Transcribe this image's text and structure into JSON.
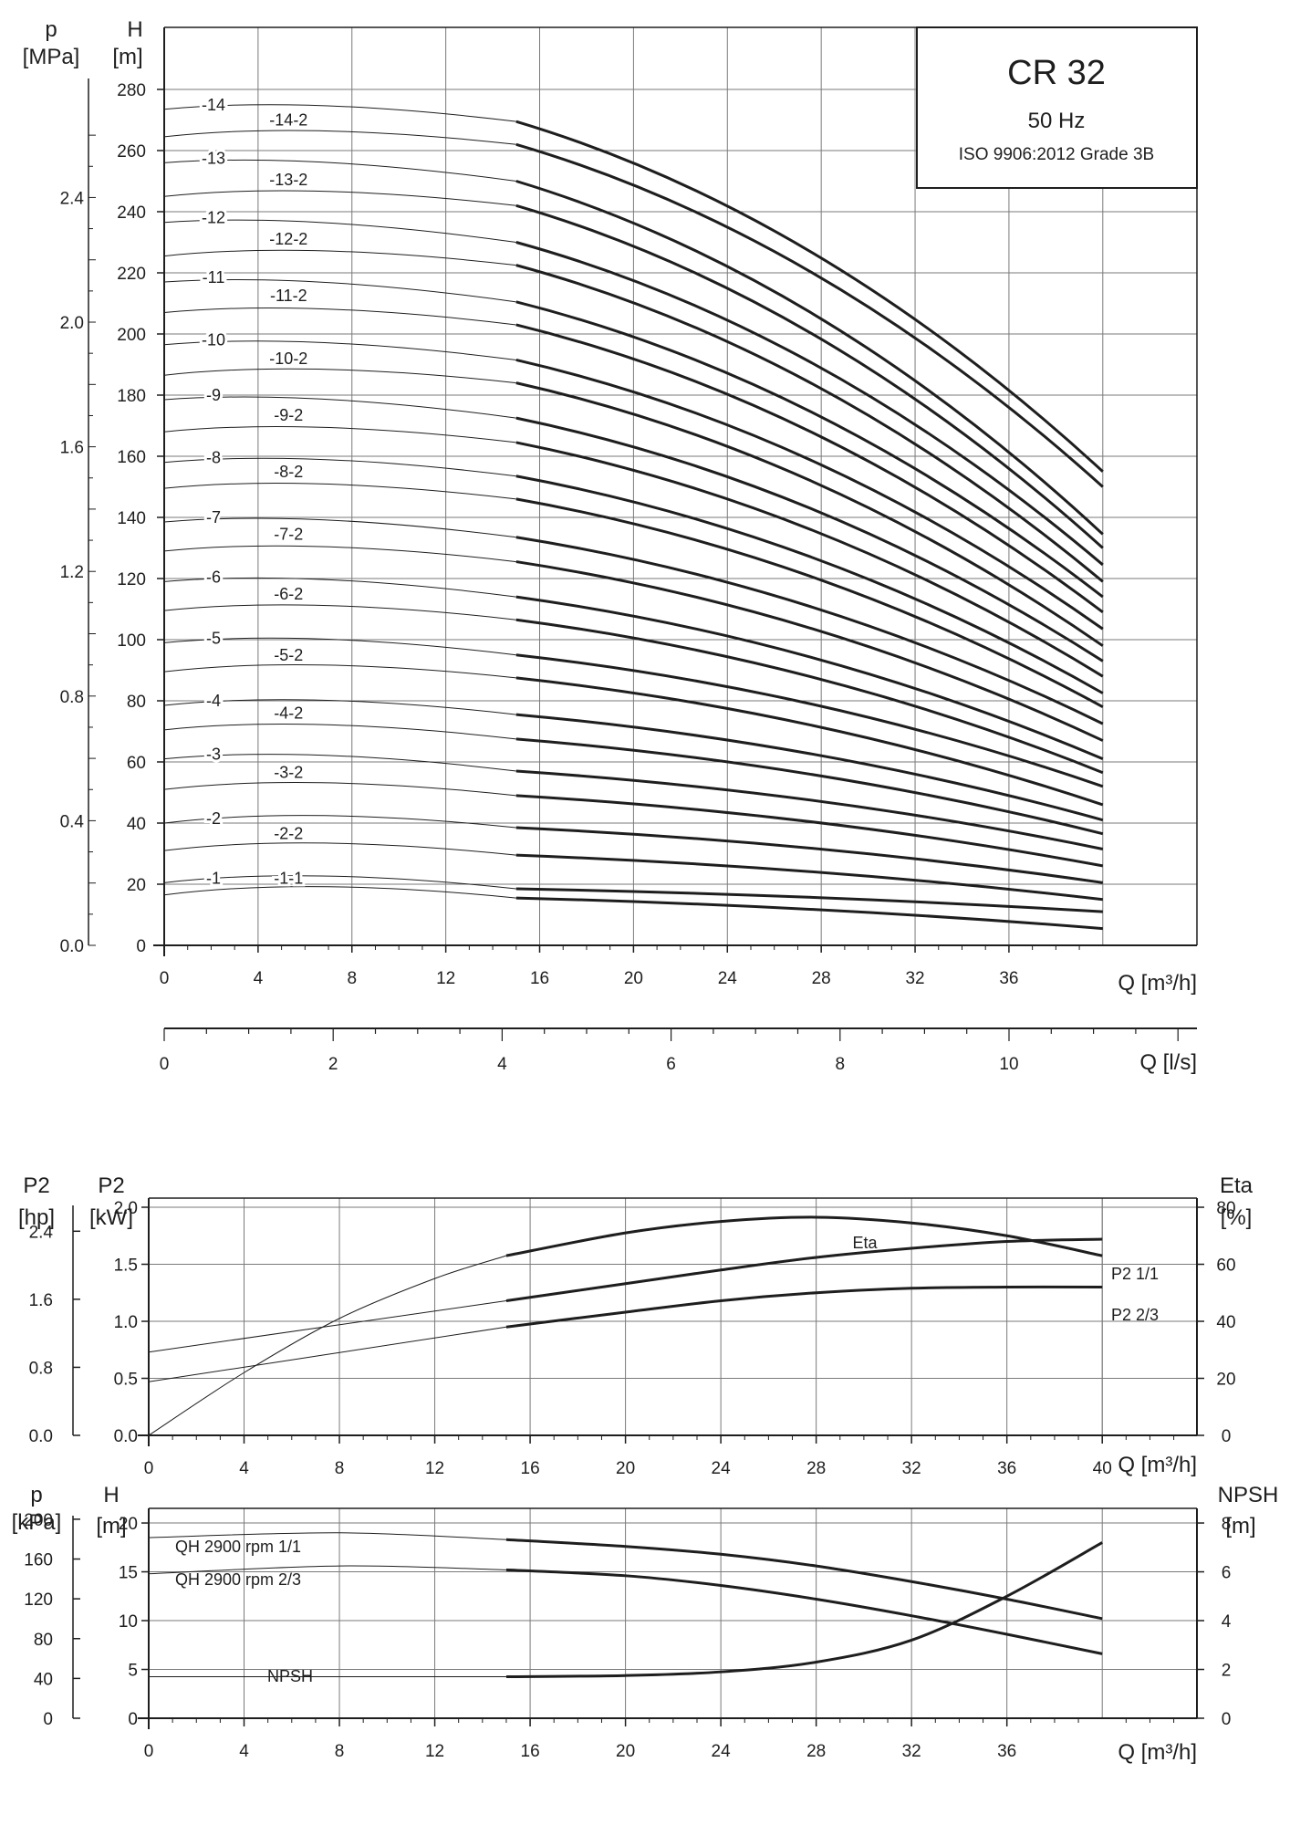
{
  "info_box": {
    "title": "CR 32",
    "frequency": "50 Hz",
    "standard": "ISO 9906:2012 Grade 3B"
  },
  "colors": {
    "ink": "#1e1e1e",
    "grid": "#7a7a7a",
    "background": "#ffffff"
  },
  "chart_data": [
    {
      "type": "line",
      "id": "qh_curves",
      "xlabel": "Q [m³/h]",
      "ylabel_left": "H",
      "ylabel_left_unit": "[m]",
      "ylabel_outer": "p",
      "ylabel_outer_unit": "[MPa]",
      "xlim": [
        0,
        44
      ],
      "ylim": [
        0,
        290
      ],
      "xticks": [
        0,
        4,
        8,
        12,
        16,
        20,
        24,
        28,
        32,
        36
      ],
      "yticks": [
        0,
        20,
        40,
        60,
        80,
        100,
        120,
        140,
        160,
        180,
        200,
        220,
        240,
        260,
        280
      ],
      "outer_ticks": [
        {
          "label": "0.0",
          "value": 0.0
        },
        {
          "label": "0.4",
          "value": 0.4
        },
        {
          "label": "0.8",
          "value": 0.8
        },
        {
          "label": "1.2",
          "value": 1.2
        },
        {
          "label": "1.6",
          "value": 1.6
        },
        {
          "label": "2.0",
          "value": 2.0
        },
        {
          "label": "2.4",
          "value": 2.4
        }
      ],
      "operating_range": [
        15,
        40
      ],
      "grid": true,
      "series": [
        {
          "name": "-1",
          "y0": 20.5,
          "y15": 18.5,
          "y40": 11.0
        },
        {
          "name": "-1-1",
          "y0": 16.5,
          "y15": 15.5,
          "y40": 5.5
        },
        {
          "name": "-2",
          "y0": 40.0,
          "y15": 38.5,
          "y40": 20.5
        },
        {
          "name": "-2-2",
          "y0": 31.0,
          "y15": 29.5,
          "y40": 15.0
        },
        {
          "name": "-3",
          "y0": 61.0,
          "y15": 57.0,
          "y40": 31.5
        },
        {
          "name": "-3-2",
          "y0": 51.0,
          "y15": 49.0,
          "y40": 26.0
        },
        {
          "name": "-4",
          "y0": 78.5,
          "y15": 75.5,
          "y40": 41.0
        },
        {
          "name": "-4-2",
          "y0": 70.5,
          "y15": 67.5,
          "y40": 36.5
        },
        {
          "name": "-5",
          "y0": 99.0,
          "y15": 95.0,
          "y40": 52.0
        },
        {
          "name": "-5-2",
          "y0": 89.5,
          "y15": 87.5,
          "y40": 46.0
        },
        {
          "name": "-6",
          "y0": 119.0,
          "y15": 114.0,
          "y40": 61.0
        },
        {
          "name": "-6-2",
          "y0": 109.5,
          "y15": 106.5,
          "y40": 56.5
        },
        {
          "name": "-7",
          "y0": 138.5,
          "y15": 133.5,
          "y40": 72.5
        },
        {
          "name": "-7-2",
          "y0": 129.0,
          "y15": 125.5,
          "y40": 67.0
        },
        {
          "name": "-8",
          "y0": 158.0,
          "y15": 153.5,
          "y40": 82.5
        },
        {
          "name": "-8-2",
          "y0": 149.5,
          "y15": 146.0,
          "y40": 78.0
        },
        {
          "name": "-9",
          "y0": 178.5,
          "y15": 172.5,
          "y40": 93.0
        },
        {
          "name": "-9-2",
          "y0": 168.0,
          "y15": 164.5,
          "y40": 88.0
        },
        {
          "name": "-10",
          "y0": 196.5,
          "y15": 191.5,
          "y40": 103.5
        },
        {
          "name": "-10-2",
          "y0": 186.5,
          "y15": 184.0,
          "y40": 98.0
        },
        {
          "name": "-11",
          "y0": 217.0,
          "y15": 210.5,
          "y40": 114.0
        },
        {
          "name": "-11-2",
          "y0": 207.0,
          "y15": 203.0,
          "y40": 109.0
        },
        {
          "name": "-12",
          "y0": 236.5,
          "y15": 230.0,
          "y40": 124.5
        },
        {
          "name": "-12-2",
          "y0": 225.5,
          "y15": 222.5,
          "y40": 119.0
        },
        {
          "name": "-13",
          "y0": 256.0,
          "y15": 250.0,
          "y40": 134.5
        },
        {
          "name": "-13-2",
          "y0": 245.0,
          "y15": 242.0,
          "y40": 130.0
        },
        {
          "name": "-14",
          "y0": 273.5,
          "y15": 269.5,
          "y40": 155.0
        },
        {
          "name": "-14-2",
          "y0": 264.5,
          "y15": 262.0,
          "y40": 150.0
        }
      ]
    },
    {
      "type": "axis",
      "id": "flow_ls_axis",
      "xlabel": "Q [l/s]",
      "xlim": [
        0,
        12.2
      ],
      "xticks": [
        0,
        2,
        4,
        6,
        8,
        10
      ]
    },
    {
      "type": "line",
      "id": "power_efficiency",
      "xlabel": "Q [m³/h]",
      "ylabel_left": "P2",
      "ylabel_left_unit": "[kW]",
      "ylabel_outer": "P2",
      "ylabel_outer_unit": "[hp]",
      "ylabel_right": "Eta",
      "ylabel_right_unit": "[%]",
      "xlim": [
        0,
        44
      ],
      "ylim": [
        0,
        2.0
      ],
      "xticks": [
        0,
        4,
        8,
        12,
        16,
        20,
        24,
        28,
        32,
        36,
        40
      ],
      "xtick_labels": [
        "0",
        "4",
        "8",
        "12",
        "16",
        "20",
        "24",
        "28",
        "32",
        "36",
        "40"
      ],
      "yticks": [
        {
          "label": "0.0",
          "value": 0.0
        },
        {
          "label": "0.5",
          "value": 0.5
        },
        {
          "label": "1.0",
          "value": 1.0
        },
        {
          "label": "1.5",
          "value": 1.5
        },
        {
          "label": "2.0",
          "value": 2.0
        }
      ],
      "outer_ticks": [
        {
          "label": "0.0",
          "value": 0.0
        },
        {
          "label": "0.8",
          "value": 0.8
        },
        {
          "label": "1.6",
          "value": 1.6
        },
        {
          "label": "2.4",
          "value": 2.4
        }
      ],
      "right_ticks": [
        {
          "label": "0",
          "value": 0
        },
        {
          "label": "20",
          "value": 20
        },
        {
          "label": "40",
          "value": 40
        },
        {
          "label": "60",
          "value": 60
        },
        {
          "label": "80",
          "value": 80
        }
      ],
      "operating_range": [
        15,
        40
      ],
      "grid": true,
      "series": [
        {
          "name": "P2 1/1",
          "axis": "left",
          "points": [
            [
              0,
              0.73
            ],
            [
              15,
              1.18
            ],
            [
              20,
              1.33
            ],
            [
              24,
              1.45
            ],
            [
              28,
              1.56
            ],
            [
              32,
              1.64
            ],
            [
              36,
              1.7
            ],
            [
              40,
              1.72
            ]
          ]
        },
        {
          "name": "P2 2/3",
          "axis": "left",
          "points": [
            [
              0,
              0.47
            ],
            [
              15,
              0.95
            ],
            [
              20,
              1.08
            ],
            [
              24,
              1.18
            ],
            [
              28,
              1.25
            ],
            [
              32,
              1.29
            ],
            [
              36,
              1.3
            ],
            [
              40,
              1.3
            ]
          ]
        },
        {
          "name": "Eta",
          "axis": "right",
          "points": [
            [
              0,
              0
            ],
            [
              4,
              22
            ],
            [
              8,
              41
            ],
            [
              12,
              55
            ],
            [
              15,
              63
            ],
            [
              20,
              71
            ],
            [
              24,
              75
            ],
            [
              28,
              76.5
            ],
            [
              32,
              74.5
            ],
            [
              36,
              70
            ],
            [
              40,
              63
            ]
          ]
        }
      ]
    },
    {
      "type": "line",
      "id": "head_npsh",
      "xlabel": "Q [m³/h]",
      "ylabel_left": "H",
      "ylabel_left_unit": "[m]",
      "ylabel_outer": "p",
      "ylabel_outer_unit": "[kPa]",
      "ylabel_right": "NPSH",
      "ylabel_right_unit": "[m]",
      "xlim": [
        0,
        44
      ],
      "ylim": [
        0,
        21.5
      ],
      "xticks": [
        0,
        4,
        8,
        12,
        16,
        20,
        24,
        28,
        32,
        36
      ],
      "yticks": [
        {
          "label": "0",
          "value": 0
        },
        {
          "label": "5",
          "value": 5
        },
        {
          "label": "10",
          "value": 10
        },
        {
          "label": "15",
          "value": 15
        },
        {
          "label": "20",
          "value": 20
        }
      ],
      "outer_ticks": [
        {
          "label": "0",
          "value": 0
        },
        {
          "label": "40",
          "value": 40
        },
        {
          "label": "80",
          "value": 80
        },
        {
          "label": "120",
          "value": 120
        },
        {
          "label": "160",
          "value": 160
        },
        {
          "label": "200",
          "value": 200
        }
      ],
      "right_ticks": [
        {
          "label": "0",
          "value": 0
        },
        {
          "label": "2",
          "value": 2
        },
        {
          "label": "4",
          "value": 4
        },
        {
          "label": "6",
          "value": 6
        },
        {
          "label": "8",
          "value": 8
        }
      ],
      "operating_range": [
        15,
        40
      ],
      "grid": true,
      "series": [
        {
          "name": "QH 2900 rpm 1/1",
          "axis": "left",
          "points": [
            [
              0,
              18.5
            ],
            [
              8,
              19.0
            ],
            [
              15,
              18.3
            ],
            [
              20,
              17.6
            ],
            [
              24,
              16.8
            ],
            [
              28,
              15.6
            ],
            [
              32,
              14.0
            ],
            [
              36,
              12.2
            ],
            [
              40,
              10.2
            ]
          ]
        },
        {
          "name": "QH 2900 rpm 2/3",
          "axis": "left",
          "points": [
            [
              0,
              14.8
            ],
            [
              8,
              15.6
            ],
            [
              15,
              15.2
            ],
            [
              20,
              14.6
            ],
            [
              24,
              13.6
            ],
            [
              28,
              12.2
            ],
            [
              32,
              10.5
            ],
            [
              36,
              8.6
            ],
            [
              40,
              6.6
            ]
          ]
        },
        {
          "name": "NPSH",
          "axis": "right",
          "points": [
            [
              0,
              1.7
            ],
            [
              15,
              1.7
            ],
            [
              20,
              1.75
            ],
            [
              24,
              1.9
            ],
            [
              28,
              2.3
            ],
            [
              32,
              3.2
            ],
            [
              36,
              5.0
            ],
            [
              40,
              7.2
            ]
          ]
        }
      ]
    }
  ]
}
